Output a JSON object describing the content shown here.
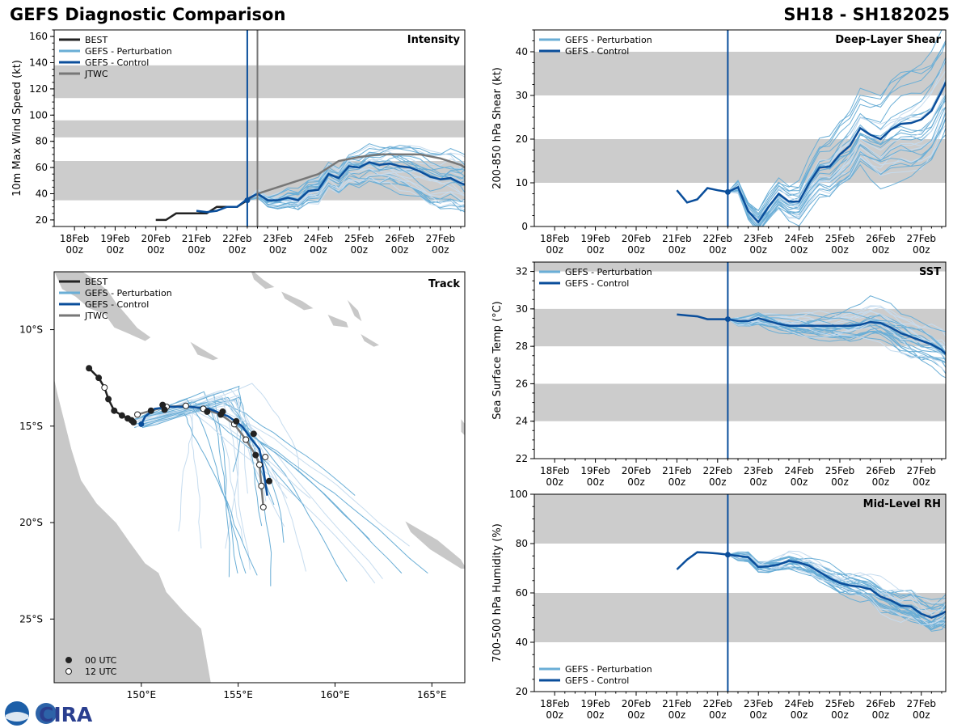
{
  "header": {
    "title_left": "GEFS Diagnostic Comparison",
    "title_right": "SH18 - SH182025"
  },
  "colors": {
    "best": "#222222",
    "perturbation": "#6aaed6",
    "perturbation_light": "#c6dcef",
    "control": "#0a4e9b",
    "jtwc": "#777777",
    "band": "#cccccc",
    "land": "#c8c8c8"
  },
  "logo": {
    "text": "CIRA",
    "icon": "noaa-logo-icon"
  },
  "time_axis": {
    "labels": [
      "18Feb\n00z",
      "19Feb\n00z",
      "20Feb\n00z",
      "21Feb\n00z",
      "22Feb\n00z",
      "23Feb\n00z",
      "24Feb\n00z",
      "25Feb\n00z",
      "26Feb\n00z",
      "27Feb\n00z"
    ],
    "range_days": [
      -0.5,
      9.6
    ],
    "init_day": 4.25,
    "jtwc_marker_day": 4.5
  },
  "chart_data": [
    {
      "id": "intensity",
      "type": "line",
      "title": "Intensity",
      "ylabel": "10m Max Wind Speed (kt)",
      "ylim": [
        15,
        165
      ],
      "yticks": [
        20,
        40,
        60,
        80,
        100,
        120,
        140,
        160
      ],
      "bands": [
        [
          35,
          65
        ],
        [
          83,
          96
        ],
        [
          113,
          138
        ]
      ],
      "legend": [
        "BEST",
        "GEFS - Perturbation",
        "GEFS - Control",
        "JTWC"
      ],
      "best": {
        "x": [
          2.0,
          2.25,
          2.5,
          2.75,
          3.0,
          3.25,
          3.5,
          3.75,
          4.0,
          4.25
        ],
        "y": [
          20,
          20,
          25,
          25,
          25,
          25,
          30,
          30,
          30,
          35
        ]
      },
      "control": {
        "x": [
          3.0,
          3.25,
          3.5,
          3.75,
          4.0,
          4.25,
          4.5,
          4.75,
          5.0,
          5.25,
          5.5,
          5.75,
          6.0,
          6.25,
          6.5,
          6.75,
          7.0,
          7.25,
          7.5,
          7.75,
          8.0,
          8.25,
          8.5,
          8.75,
          9.0,
          9.25,
          9.5,
          9.6
        ],
        "y": [
          27,
          26,
          27,
          30,
          30,
          36,
          40,
          35,
          35,
          37,
          35,
          42,
          43,
          55,
          52,
          61,
          60,
          64,
          62,
          63,
          61,
          60,
          57,
          53,
          51,
          52,
          48,
          47
        ]
      },
      "jtwc": {
        "x": [
          4.25,
          4.5,
          5.0,
          5.5,
          6.0,
          6.5,
          7.0,
          7.5,
          8.0,
          8.5,
          9.0,
          9.5,
          9.6
        ],
        "y": [
          35,
          40,
          45,
          50,
          55,
          65,
          68,
          70,
          70,
          70,
          67,
          62,
          60
        ]
      },
      "perturbation_count": 30,
      "init_value": 35
    },
    {
      "id": "shear",
      "type": "line",
      "title": "Deep-Layer Shear",
      "ylabel": "200-850 hPa Shear (kt)",
      "ylim": [
        0,
        45
      ],
      "yticks": [
        0,
        10,
        20,
        30,
        40
      ],
      "bands": [
        [
          10,
          20
        ],
        [
          30,
          40
        ]
      ],
      "legend": [
        "GEFS - Perturbation",
        "GEFS - Control"
      ],
      "control": {
        "x": [
          3.0,
          3.25,
          3.5,
          3.75,
          4.0,
          4.25,
          4.5,
          4.75,
          5.0,
          5.25,
          5.5,
          5.75,
          6.0,
          6.25,
          6.5,
          6.75,
          7.0,
          7.25,
          7.5,
          7.75,
          8.0,
          8.25,
          8.5,
          8.75,
          9.0,
          9.25,
          9.5,
          9.6
        ],
        "y": [
          8.3,
          5.5,
          6.2,
          8.8,
          8.3,
          7.9,
          9.0,
          3.5,
          1.0,
          4.5,
          7.5,
          5.7,
          5.7,
          10,
          13.5,
          13.7,
          16.5,
          18.5,
          22.5,
          21.0,
          20.0,
          22.2,
          23.5,
          23.7,
          24.5,
          26.5,
          31.0,
          33.0
        ]
      },
      "perturbation_count": 30,
      "init_value": 7.9
    },
    {
      "id": "sst",
      "type": "line",
      "title": "SST",
      "ylabel": "Sea Surface Temp (°C)",
      "ylim": [
        22,
        32.5
      ],
      "yticks": [
        22,
        24,
        26,
        28,
        30,
        32
      ],
      "bands": [
        [
          24,
          26
        ],
        [
          28,
          30
        ],
        [
          32,
          32.5
        ]
      ],
      "legend": [
        "GEFS - Perturbation",
        "GEFS - Control"
      ],
      "control": {
        "x": [
          3.0,
          3.25,
          3.5,
          3.75,
          4.0,
          4.25,
          4.5,
          4.75,
          5.0,
          5.25,
          5.5,
          5.75,
          6.0,
          6.25,
          6.5,
          6.75,
          7.0,
          7.25,
          7.5,
          7.75,
          8.0,
          8.25,
          8.5,
          8.75,
          9.0,
          9.25,
          9.5,
          9.6
        ],
        "y": [
          29.7,
          29.65,
          29.6,
          29.45,
          29.45,
          29.45,
          29.35,
          29.35,
          29.5,
          29.35,
          29.2,
          29.1,
          29.1,
          29.1,
          29.1,
          29.1,
          29.1,
          29.1,
          29.15,
          29.3,
          29.25,
          29.0,
          28.7,
          28.5,
          28.3,
          28.1,
          27.8,
          27.6
        ]
      },
      "perturbation_count": 30,
      "init_value": 29.45
    },
    {
      "id": "rh",
      "type": "line",
      "title": "Mid-Level RH",
      "ylabel": "700-500 hPa Humidity (%)",
      "ylim": [
        20,
        100
      ],
      "yticks": [
        20,
        40,
        60,
        80,
        100
      ],
      "bands": [
        [
          40,
          60
        ],
        [
          80,
          100
        ]
      ],
      "legend": [
        "GEFS - Perturbation",
        "GEFS - Control"
      ],
      "control": {
        "x": [
          3.0,
          3.25,
          3.5,
          3.75,
          4.0,
          4.25,
          4.5,
          4.75,
          5.0,
          5.25,
          5.5,
          5.75,
          6.0,
          6.25,
          6.5,
          6.75,
          7.0,
          7.25,
          7.5,
          7.75,
          8.0,
          8.25,
          8.5,
          8.75,
          9.0,
          9.25,
          9.5,
          9.6
        ],
        "y": [
          69.5,
          73.5,
          76.5,
          76.3,
          76.0,
          75.5,
          75.0,
          74.5,
          70.5,
          70.8,
          71.5,
          73.0,
          72.3,
          71.0,
          68.5,
          66.0,
          64.0,
          63.0,
          62.5,
          61.5,
          58.5,
          57.0,
          54.8,
          54.5,
          51.5,
          50.0,
          51.5,
          52.5
        ]
      },
      "perturbation_count": 30,
      "init_value": 75.5
    },
    {
      "id": "track",
      "type": "scatter",
      "title": "Track",
      "lon_range": [
        145.5,
        166.7
      ],
      "lat_range": [
        -28.3,
        -7.0
      ],
      "lon_ticks": [
        "150°E",
        "155°E",
        "160°E",
        "165°E"
      ],
      "lon_tick_values": [
        150,
        155,
        160,
        165
      ],
      "lat_ticks": [
        "10°S",
        "15°S",
        "20°S",
        "25°S"
      ],
      "lat_tick_values": [
        -10,
        -15,
        -20,
        -25
      ],
      "legend": [
        "BEST",
        "GEFS - Perturbation",
        "GEFS - Control",
        "JTWC"
      ],
      "marker_legend": [
        "00 UTC",
        "12 UTC"
      ],
      "best": {
        "lon": [
          147.3,
          147.8,
          148.1,
          148.3,
          148.6,
          149.0,
          149.3,
          149.5,
          149.6
        ],
        "lat": [
          -12.0,
          -12.5,
          -13.0,
          -13.6,
          -14.2,
          -14.45,
          -14.6,
          -14.7,
          -14.8
        ],
        "marker": [
          "00",
          "00",
          "12",
          "00",
          "00",
          "00",
          "00",
          "00",
          "00"
        ]
      },
      "control": {
        "lon": [
          150.0,
          150.2,
          150.7,
          151.5,
          152.5,
          153.5,
          154.5,
          155.2,
          155.7,
          156.1,
          156.3,
          156.5
        ],
        "lat": [
          -14.9,
          -14.5,
          -14.1,
          -14.0,
          -14.0,
          -14.1,
          -14.5,
          -15.0,
          -15.7,
          -16.2,
          -17.2,
          -18.6
        ]
      },
      "jtwc": {
        "lon": [
          149.8,
          150.5,
          151.3,
          152.3,
          153.2,
          154.1,
          154.8,
          155.4,
          155.9,
          156.1,
          156.2,
          156.3
        ],
        "lat": [
          -14.4,
          -14.2,
          -14.0,
          -13.95,
          -14.1,
          -14.4,
          -14.9,
          -15.7,
          -16.5,
          -17.0,
          -18.1,
          -19.2
        ],
        "marker": [
          "12",
          "00",
          "12",
          "12",
          "12",
          "00",
          "12",
          "12",
          "00",
          "12",
          "12",
          "12"
        ]
      },
      "best_extra": {
        "lon": [
          151.2,
          151.1,
          153.4,
          154.2,
          154.9,
          155.8,
          156.6,
          156.4
        ],
        "lat": [
          -14.15,
          -13.9,
          -14.25,
          -14.25,
          -14.75,
          -15.4,
          -17.85,
          -16.6
        ],
        "marker": [
          "00",
          "00",
          "00",
          "00",
          "00",
          "00",
          "00",
          "12"
        ]
      },
      "perturbation_count": 30
    }
  ]
}
